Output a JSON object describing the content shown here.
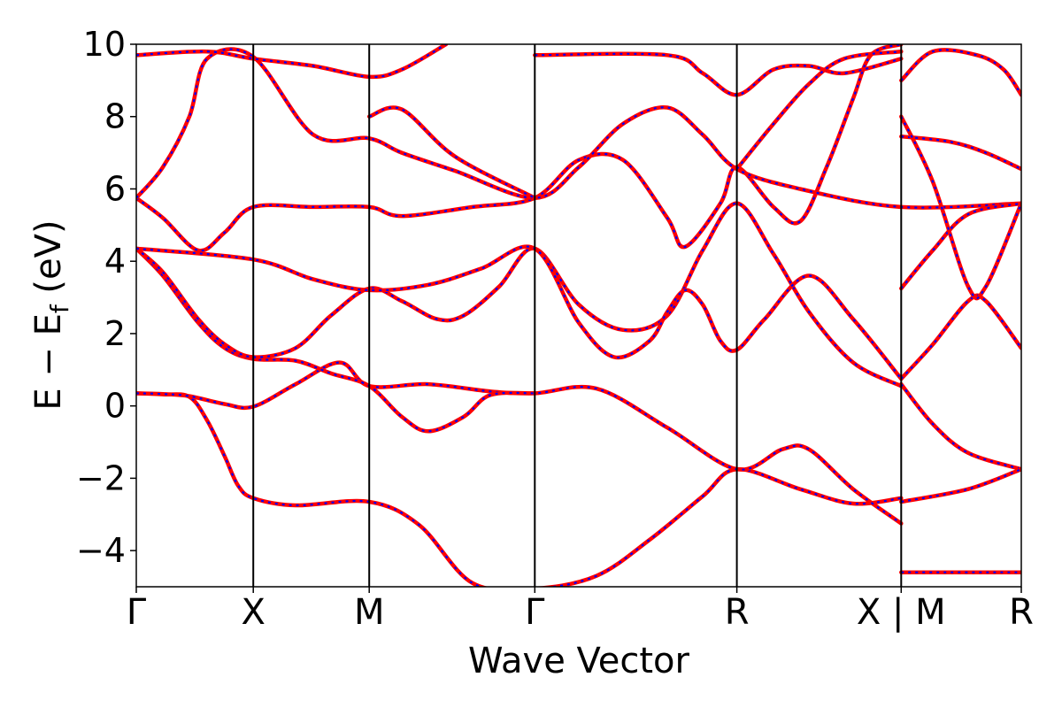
{
  "chart_data": {
    "type": "line",
    "xlabel": "Wave Vector",
    "ylabel": "E − E",
    "ylabel_subscript": "f",
    "ylabel_unit": " (eV)",
    "ylim": [
      -5,
      10
    ],
    "yticks": [
      -4,
      -2,
      0,
      2,
      4,
      6,
      8,
      10
    ],
    "ytick_labels": [
      "−4",
      "−2",
      "0",
      "2",
      "4",
      "6",
      "8",
      "10"
    ],
    "grid": false,
    "kpoint_ticks": [
      {
        "k": 0.0,
        "label": "Γ"
      },
      {
        "k": 0.1322,
        "label": "X"
      },
      {
        "k": 0.2632,
        "label": "M"
      },
      {
        "k": 0.4503,
        "label": "Γ"
      },
      {
        "k": 0.6786,
        "label": "R"
      },
      {
        "k": 0.8643,
        "label": "X | M"
      },
      {
        "k": 1.0,
        "label": "R"
      }
    ],
    "line_style": {
      "solid_color": "#ff0000",
      "dashed_color": "#0000ff"
    },
    "series": [
      {
        "points": [
          [
            0,
            0.35
          ],
          [
            0.03,
            0.32
          ],
          [
            0.06,
            0.25
          ],
          [
            0.08,
            -0.4
          ],
          [
            0.1,
            -1.4
          ],
          [
            0.115,
            -2.2
          ],
          [
            0.1322,
            -2.55
          ],
          [
            0.18,
            -2.75
          ],
          [
            0.2632,
            -2.65
          ],
          [
            0.32,
            -3.3
          ],
          [
            0.38,
            -4.9
          ],
          [
            0.4503,
            -5.05
          ],
          [
            0.52,
            -4.7
          ],
          [
            0.58,
            -3.7
          ],
          [
            0.64,
            -2.5
          ],
          [
            0.6786,
            -1.75
          ],
          [
            0.75,
            -2.3
          ],
          [
            0.81,
            -2.7
          ],
          [
            0.8643,
            -2.55
          ]
        ]
      },
      {
        "points": [
          [
            0,
            0.35
          ],
          [
            0.03,
            0.33
          ],
          [
            0.06,
            0.27
          ],
          [
            0.1,
            0.05
          ],
          [
            0.1322,
            -0.02
          ],
          [
            0.18,
            0.6
          ],
          [
            0.23,
            1.2
          ],
          [
            0.2632,
            0.55
          ],
          [
            0.33,
            0.6
          ],
          [
            0.4,
            0.4
          ],
          [
            0.4503,
            0.35
          ],
          [
            0.52,
            0.48
          ],
          [
            0.6,
            -0.6
          ],
          [
            0.6786,
            -1.75
          ],
          [
            0.73,
            -1.2
          ],
          [
            0.76,
            -1.2
          ],
          [
            0.81,
            -2.3
          ],
          [
            0.8643,
            -3.25
          ]
        ]
      },
      {
        "points": [
          [
            0,
            4.35
          ],
          [
            0.03,
            3.6
          ],
          [
            0.07,
            2.3
          ],
          [
            0.1,
            1.6
          ],
          [
            0.1322,
            1.3
          ],
          [
            0.18,
            1.25
          ],
          [
            0.22,
            0.9
          ],
          [
            0.2632,
            0.55
          ],
          [
            0.3,
            -0.3
          ],
          [
            0.33,
            -0.7
          ],
          [
            0.37,
            -0.3
          ],
          [
            0.4,
            0.3
          ],
          [
            0.4503,
            0.35
          ]
        ]
      },
      {
        "points": [
          [
            0,
            4.35
          ],
          [
            0.03,
            3.7
          ],
          [
            0.07,
            2.4
          ],
          [
            0.1,
            1.7
          ],
          [
            0.1322,
            1.35
          ],
          [
            0.18,
            1.6
          ],
          [
            0.22,
            2.5
          ],
          [
            0.2632,
            3.25
          ],
          [
            0.3,
            2.9
          ],
          [
            0.34,
            2.4
          ],
          [
            0.37,
            2.5
          ],
          [
            0.41,
            3.3
          ],
          [
            0.4503,
            4.35
          ],
          [
            0.5,
            2.8
          ],
          [
            0.55,
            2.1
          ],
          [
            0.6,
            2.5
          ],
          [
            0.64,
            4.3
          ],
          [
            0.6786,
            5.6
          ],
          [
            0.72,
            4.2
          ],
          [
            0.76,
            2.6
          ],
          [
            0.81,
            1.2
          ],
          [
            0.8643,
            0.55
          ]
        ]
      },
      {
        "points": [
          [
            0,
            4.35
          ],
          [
            0.1322,
            4.05
          ],
          [
            0.2,
            3.5
          ],
          [
            0.2632,
            3.2
          ],
          [
            0.33,
            3.35
          ],
          [
            0.39,
            3.8
          ],
          [
            0.4503,
            4.35
          ],
          [
            0.5,
            2.3
          ],
          [
            0.54,
            1.35
          ],
          [
            0.58,
            1.8
          ],
          [
            0.6,
            2.6
          ],
          [
            0.62,
            3.2
          ],
          [
            0.64,
            2.8
          ],
          [
            0.66,
            1.8
          ],
          [
            0.6786,
            1.55
          ],
          [
            0.71,
            2.4
          ],
          [
            0.76,
            3.6
          ],
          [
            0.81,
            2.4
          ],
          [
            0.8643,
            0.75
          ]
        ]
      },
      {
        "points": [
          [
            0,
            5.75
          ],
          [
            0.03,
            5.2
          ],
          [
            0.07,
            4.3
          ],
          [
            0.1,
            4.8
          ],
          [
            0.1322,
            5.5
          ],
          [
            0.2,
            5.5
          ],
          [
            0.2632,
            5.5
          ],
          [
            0.3,
            5.25
          ],
          [
            0.38,
            5.5
          ],
          [
            0.4503,
            5.75
          ],
          [
            0.5,
            6.8
          ],
          [
            0.55,
            6.8
          ],
          [
            0.6,
            5.2
          ],
          [
            0.62,
            4.4
          ],
          [
            0.66,
            5.6
          ],
          [
            0.6786,
            6.6
          ],
          [
            0.72,
            5.5
          ],
          [
            0.75,
            5.1
          ],
          [
            0.78,
            6.6
          ],
          [
            0.81,
            8.5
          ],
          [
            0.83,
            9.7
          ],
          [
            0.8643,
            10.0
          ]
        ]
      },
      {
        "points": [
          [
            0,
            5.75
          ],
          [
            0.03,
            6.6
          ],
          [
            0.06,
            8.0
          ],
          [
            0.08,
            9.6
          ],
          [
            0.1322,
            9.65
          ],
          [
            0.2,
            7.5
          ],
          [
            0.2632,
            7.4
          ],
          [
            0.3,
            7.0
          ],
          [
            0.36,
            6.5
          ],
          [
            0.4503,
            5.75
          ],
          [
            0.5,
            6.6
          ],
          [
            0.55,
            7.8
          ],
          [
            0.6,
            8.25
          ],
          [
            0.64,
            7.5
          ],
          [
            0.6786,
            6.55
          ],
          [
            0.75,
            6.0
          ],
          [
            0.8643,
            5.5
          ],
          [
            1.0,
            5.6
          ]
        ]
      },
      {
        "points": [
          [
            0,
            9.7
          ],
          [
            0.08,
            9.8
          ],
          [
            0.1322,
            9.6
          ],
          [
            0.2,
            9.4
          ],
          [
            0.2632,
            9.1
          ],
          [
            0.3,
            9.3
          ],
          [
            0.35,
            10.0
          ]
        ]
      },
      {
        "points": [
          [
            0.2632,
            8.0
          ],
          [
            0.3,
            8.2
          ],
          [
            0.36,
            6.9
          ],
          [
            0.4503,
            5.75
          ]
        ]
      },
      {
        "points": [
          [
            0.4503,
            9.7
          ],
          [
            0.6,
            9.7
          ],
          [
            0.64,
            9.2
          ],
          [
            0.6786,
            8.6
          ],
          [
            0.72,
            9.3
          ],
          [
            0.76,
            9.4
          ],
          [
            0.8,
            9.2
          ],
          [
            0.8643,
            9.6
          ]
        ]
      },
      {
        "points": [
          [
            0.6786,
            6.55
          ],
          [
            0.72,
            7.8
          ],
          [
            0.76,
            8.9
          ],
          [
            0.8,
            9.6
          ],
          [
            0.8643,
            9.8
          ]
        ]
      },
      {
        "points": [
          [
            0.8643,
            0.6
          ],
          [
            0.9,
            -0.5
          ],
          [
            0.94,
            -1.3
          ],
          [
            1.0,
            -1.75
          ]
        ]
      },
      {
        "points": [
          [
            0.8643,
            -2.65
          ],
          [
            0.94,
            -2.3
          ],
          [
            1.0,
            -1.75
          ]
        ]
      },
      {
        "points": [
          [
            0.8643,
            0.75
          ],
          [
            0.9,
            1.7
          ],
          [
            0.94,
            2.9
          ],
          [
            0.96,
            2.9
          ],
          [
            1.0,
            1.6
          ]
        ]
      },
      {
        "points": [
          [
            0.8643,
            3.25
          ],
          [
            0.9,
            4.3
          ],
          [
            0.94,
            5.3
          ],
          [
            1.0,
            5.6
          ]
        ]
      },
      {
        "points": [
          [
            0.8643,
            7.45
          ],
          [
            0.92,
            7.3
          ],
          [
            0.96,
            7.0
          ],
          [
            1.0,
            6.55
          ]
        ]
      },
      {
        "points": [
          [
            0.8643,
            8.0
          ],
          [
            0.9,
            6.2
          ],
          [
            0.94,
            3.3
          ],
          [
            0.96,
            3.3
          ],
          [
            1.0,
            5.6
          ]
        ]
      },
      {
        "points": [
          [
            0.8643,
            9.0
          ],
          [
            0.9,
            9.8
          ],
          [
            0.95,
            9.7
          ],
          [
            0.98,
            9.3
          ],
          [
            1.0,
            8.6
          ]
        ]
      },
      {
        "points": [
          [
            0.8643,
            -4.6
          ],
          [
            1.0,
            -4.6
          ]
        ]
      }
    ]
  }
}
